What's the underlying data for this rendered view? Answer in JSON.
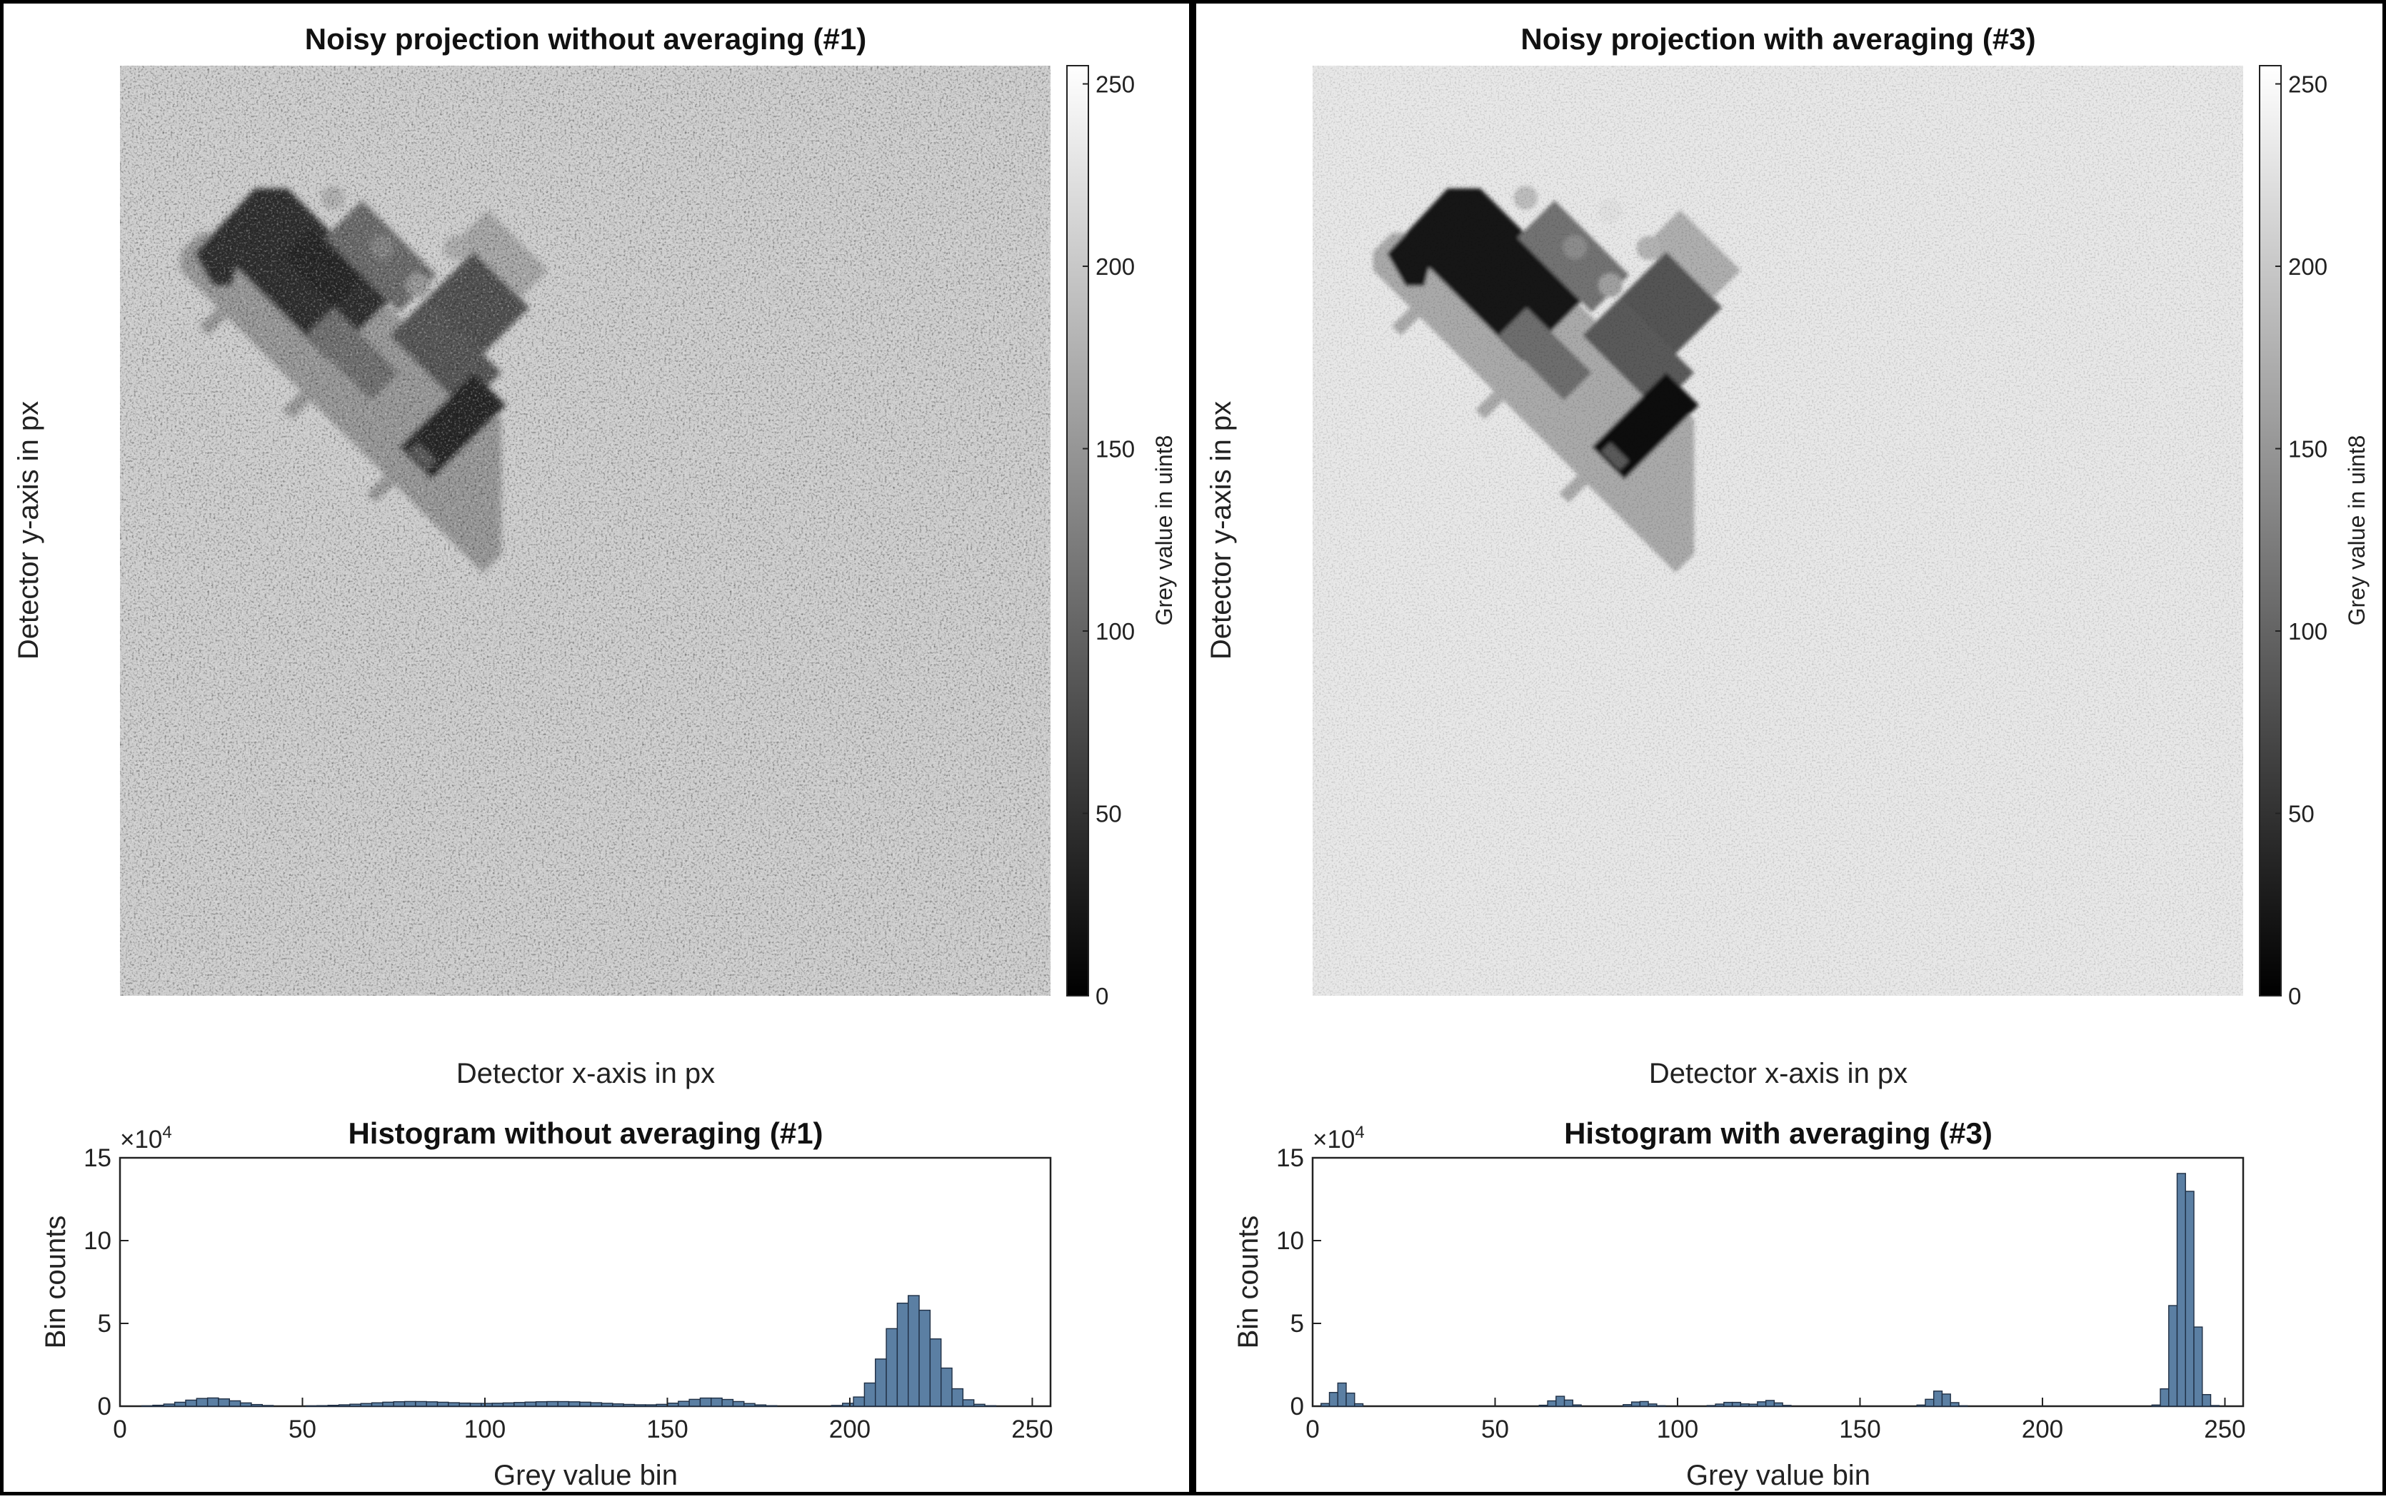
{
  "panels": [
    {
      "projection_title": "Noisy projection without averaging (#1)",
      "xlabel": "Detector x-axis in px",
      "ylabel": "Detector y-axis in px",
      "colorbar_label": "Grey value in uint8",
      "colorbar_ticks": [
        "0",
        "50",
        "100",
        "150",
        "200",
        "250"
      ],
      "histogram_title": "Histogram without averaging (#1)",
      "hist_ylabel": "Bin counts",
      "hist_xlabel": "Grey value bin",
      "exponent_label": "×10",
      "exponent_power": "4",
      "hist_yticks": [
        "0",
        "5",
        "10",
        "15"
      ],
      "hist_xticks": [
        "0",
        "50",
        "100",
        "150",
        "200",
        "250"
      ]
    },
    {
      "projection_title": "Noisy projection with averaging (#3)",
      "xlabel": "Detector x-axis in px",
      "ylabel": "Detector y-axis in px",
      "colorbar_label": "Grey value in uint8",
      "colorbar_ticks": [
        "0",
        "50",
        "100",
        "150",
        "200",
        "250"
      ],
      "histogram_title": "Histogram with averaging (#3)",
      "hist_ylabel": "Bin counts",
      "hist_xlabel": "Grey value bin",
      "exponent_label": "×10",
      "exponent_power": "4",
      "hist_yticks": [
        "0",
        "5",
        "10",
        "15"
      ],
      "hist_xticks": [
        "0",
        "50",
        "100",
        "150",
        "200",
        "250"
      ]
    }
  ],
  "chart_data": [
    {
      "type": "heatmap",
      "title": "Noisy projection without averaging (#1)",
      "xlabel": "Detector x-axis in px",
      "ylabel": "Detector y-axis in px",
      "colorbar": {
        "label": "Grey value in uint8",
        "range": [
          0,
          255
        ],
        "ticks": [
          0,
          50,
          100,
          150,
          200,
          250
        ],
        "colormap": "gray"
      },
      "background_grey": 205,
      "noise_level": "high"
    },
    {
      "type": "bar",
      "title": "Histogram without averaging (#1)",
      "xlabel": "Grey value bin",
      "ylabel": "Bin counts",
      "y_multiplier": "×10^4",
      "xlim": [
        0,
        255
      ],
      "ylim": [
        0,
        15
      ],
      "bin_width": 3,
      "bar_color": "#5b7fa3",
      "peaks": [
        {
          "center": 25,
          "height": 0.5,
          "width": 7
        },
        {
          "center": 80,
          "height": 0.28,
          "width": 12
        },
        {
          "center": 120,
          "height": 0.28,
          "width": 14
        },
        {
          "center": 162,
          "height": 0.5,
          "width": 7
        },
        {
          "center": 217,
          "height": 6.7,
          "width": 6.5
        }
      ]
    },
    {
      "type": "heatmap",
      "title": "Noisy projection with averaging (#3)",
      "xlabel": "Detector x-axis in px",
      "ylabel": "Detector y-axis in px",
      "colorbar": {
        "label": "Grey value in uint8",
        "range": [
          0,
          255
        ],
        "ticks": [
          0,
          50,
          100,
          150,
          200,
          250
        ],
        "colormap": "gray"
      },
      "background_grey": 232,
      "noise_level": "low"
    },
    {
      "type": "bar",
      "title": "Histogram with averaging (#3)",
      "xlabel": "Grey value bin",
      "ylabel": "Bin counts",
      "y_multiplier": "×10^4",
      "xlim": [
        0,
        255
      ],
      "ylim": [
        0,
        15
      ],
      "bin_width": 2.3,
      "bar_color": "#5b7fa3",
      "peaks": [
        {
          "center": 8,
          "height": 1.4,
          "width": 2.2
        },
        {
          "center": 68,
          "height": 0.6,
          "width": 2.2
        },
        {
          "center": 90,
          "height": 0.3,
          "width": 2.5
        },
        {
          "center": 115,
          "height": 0.25,
          "width": 3
        },
        {
          "center": 125,
          "height": 0.35,
          "width": 2.5
        },
        {
          "center": 172,
          "height": 0.95,
          "width": 2.3
        },
        {
          "center": 239,
          "height": 15.2,
          "width": 2.4
        }
      ]
    }
  ]
}
